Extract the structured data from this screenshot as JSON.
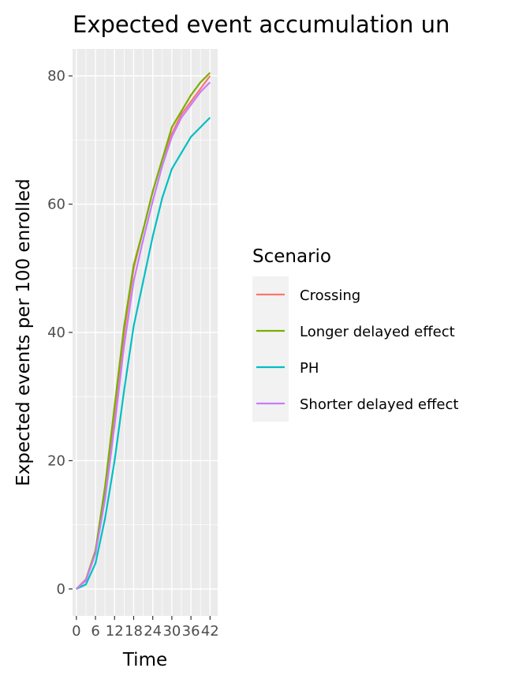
{
  "chart_data": {
    "type": "line",
    "title": "Expected event accumulation un",
    "xlabel": "Time",
    "ylabel": "Expected events per 100 enrolled",
    "xlim": [
      -1.2,
      44.4
    ],
    "ylim": [
      -4.2,
      84.2
    ],
    "x_ticks": [
      0,
      6,
      12,
      18,
      24,
      30,
      36,
      42
    ],
    "x_tick_labels": [
      "0",
      "6",
      "12",
      "18",
      "24",
      "30",
      "36",
      "42"
    ],
    "y_ticks": [
      0,
      20,
      40,
      60,
      80
    ],
    "y_tick_labels": [
      "0",
      "20",
      "40",
      "60",
      "80"
    ],
    "grid": true,
    "legend": {
      "title": "Scenario",
      "placement": "right"
    },
    "x": [
      0,
      3,
      6,
      9,
      12,
      15,
      18,
      21,
      24,
      27,
      30,
      33,
      36,
      39,
      42
    ],
    "series": [
      {
        "name": "Crossing",
        "color": "#F8766D",
        "values": [
          0,
          1.5,
          6,
          15,
          27,
          40,
          50,
          56,
          62,
          67,
          71,
          74,
          76,
          78,
          80
        ]
      },
      {
        "name": "Longer delayed effect",
        "color": "#7CAE00",
        "values": [
          0,
          1.3,
          6,
          16,
          28.5,
          41,
          50.5,
          56,
          62,
          67,
          72,
          74.5,
          77,
          79,
          80.5
        ]
      },
      {
        "name": "PH",
        "color": "#00BFC4",
        "values": [
          0,
          0.7,
          4,
          11,
          20,
          31,
          41,
          48,
          55,
          61,
          65.5,
          68,
          70.5,
          72,
          73.5
        ]
      },
      {
        "name": "Shorter delayed effect",
        "color": "#C77CFF",
        "values": [
          0,
          1.3,
          5.5,
          14,
          25.5,
          38,
          48,
          54.5,
          60.5,
          66,
          70.5,
          73.5,
          75.5,
          77.5,
          79
        ]
      }
    ]
  }
}
